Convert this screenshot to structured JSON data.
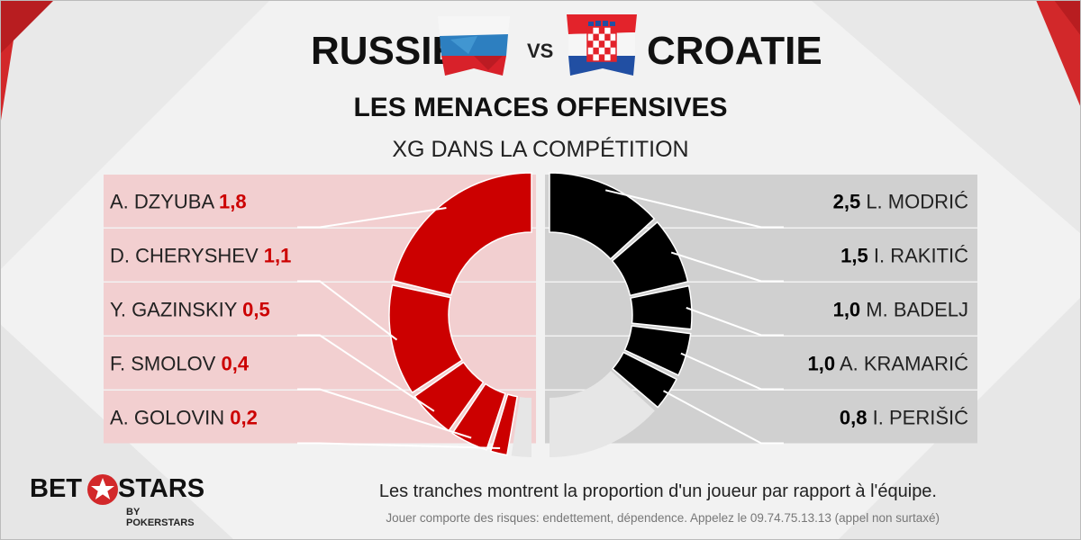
{
  "header": {
    "home_team": "RUSSIE",
    "away_team": "CROATIE",
    "vs": "VS",
    "title": "LES MENACES OFFENSIVES",
    "subtitle": "XG DANS LA COMPÉTITION"
  },
  "colors": {
    "home_accent": "#cc0000",
    "home_panel": "#f2cfd0",
    "away_accent": "#000000",
    "away_panel": "#d0d0d0",
    "remainder_slice": "#e6e6e6"
  },
  "chart_data": [
    {
      "type": "pie",
      "title": "RUSSIE",
      "slices": [
        {
          "label": "A. DZYUBA",
          "display_value": "1,8",
          "value": 1.8
        },
        {
          "label": "D. CHERYSHEV",
          "display_value": "1,1",
          "value": 1.1
        },
        {
          "label": "Y. GAZINSKIY",
          "display_value": "0,5",
          "value": 0.5
        },
        {
          "label": "F. SMOLOV",
          "display_value": "0,4",
          "value": 0.4
        },
        {
          "label": "A. GOLOVIN",
          "display_value": "0,2",
          "value": 0.2
        }
      ],
      "other_share": 0.05
    },
    {
      "type": "pie",
      "title": "CROATIE",
      "slices": [
        {
          "label": "L. MODRIĆ",
          "display_value": "2,5",
          "value": 2.5
        },
        {
          "label": "I. RAKITIĆ",
          "display_value": "1,5",
          "value": 1.5
        },
        {
          "label": "M. BADELJ",
          "display_value": "1,0",
          "value": 1.0
        },
        {
          "label": "A. KRAMARIĆ",
          "display_value": "1,0",
          "value": 1.0
        },
        {
          "label": "I. PERIŠIĆ",
          "display_value": "0,8",
          "value": 0.8
        }
      ],
      "other_share": 0.27
    }
  ],
  "footer": {
    "caption": "Les tranches montrent la proportion d'un joueur par rapport à l'équipe.",
    "disclaimer": "Jouer comporte des risques: endettement, dépendence. Appelez le 09.74.75.13.13 (appel non surtaxé)"
  },
  "brand": {
    "logo_word_1": "BET",
    "logo_word_2": "STARS",
    "logo_sub": "BY POKERSTARS",
    "logo_icon": "star-icon"
  }
}
